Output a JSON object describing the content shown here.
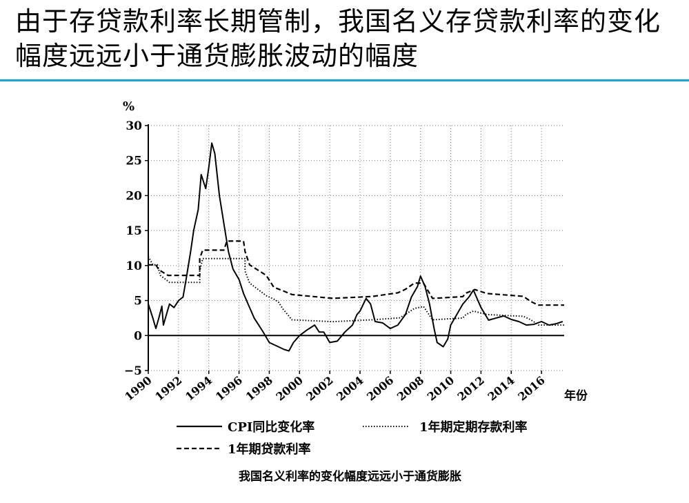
{
  "slide": {
    "title": "由于存贷款利率长期管制，我国名义存贷款利率的变化幅度远远小于通货膨胀波动的幅度",
    "caption": "我国名义利率的变化幅度远远小于通货膨胀",
    "accent_color": "#1aa6cf"
  },
  "chart_data": {
    "type": "line",
    "title": "",
    "xlabel": "年份",
    "ylabel": "%",
    "xlim": [
      1990,
      2017.5
    ],
    "ylim": [
      -5,
      30
    ],
    "yticks": [
      -5,
      0,
      5,
      10,
      15,
      20,
      25,
      30
    ],
    "xticks": [
      "1990",
      "1992",
      "1994",
      "1996",
      "1998",
      "2000",
      "2002",
      "2004",
      "2006",
      "2008",
      "2010",
      "2012",
      "2014",
      "2016"
    ],
    "grid": true,
    "legend_position": "bottom",
    "series": [
      {
        "name": "CPI同比变化率",
        "style": "solid",
        "points": [
          [
            1990,
            4.5
          ],
          [
            1990.3,
            2.5
          ],
          [
            1990.5,
            1.0
          ],
          [
            1990.7,
            2.5
          ],
          [
            1990.9,
            4.2
          ],
          [
            1991.0,
            1.5
          ],
          [
            1991.2,
            3.0
          ],
          [
            1991.4,
            4.5
          ],
          [
            1991.7,
            4.0
          ],
          [
            1992.0,
            5.0
          ],
          [
            1992.3,
            5.5
          ],
          [
            1992.5,
            8.0
          ],
          [
            1992.8,
            12.0
          ],
          [
            1993.0,
            15.0
          ],
          [
            1993.3,
            18.0
          ],
          [
            1993.5,
            23.0
          ],
          [
            1993.8,
            21.0
          ],
          [
            1994.0,
            24.0
          ],
          [
            1994.2,
            27.5
          ],
          [
            1994.4,
            26.0
          ],
          [
            1994.7,
            20.0
          ],
          [
            1995.0,
            16.0
          ],
          [
            1995.3,
            12.0
          ],
          [
            1995.6,
            9.5
          ],
          [
            1996.0,
            8.0
          ],
          [
            1996.3,
            6.0
          ],
          [
            1996.6,
            4.5
          ],
          [
            1997.0,
            2.5
          ],
          [
            1997.3,
            1.5
          ],
          [
            1997.6,
            0.5
          ],
          [
            1998.0,
            -1.0
          ],
          [
            1998.5,
            -1.5
          ],
          [
            1999.0,
            -2.0
          ],
          [
            1999.3,
            -2.2
          ],
          [
            1999.6,
            -1.0
          ],
          [
            2000.0,
            0.0
          ],
          [
            2000.5,
            0.8
          ],
          [
            2001.0,
            1.5
          ],
          [
            2001.3,
            0.5
          ],
          [
            2001.6,
            0.5
          ],
          [
            2002.0,
            -1.0
          ],
          [
            2002.5,
            -0.8
          ],
          [
            2003.0,
            0.5
          ],
          [
            2003.5,
            1.5
          ],
          [
            2003.8,
            3.0
          ],
          [
            2004.0,
            3.5
          ],
          [
            2004.4,
            5.3
          ],
          [
            2004.7,
            4.5
          ],
          [
            2005.0,
            2.0
          ],
          [
            2005.5,
            1.8
          ],
          [
            2006.0,
            1.0
          ],
          [
            2006.5,
            1.5
          ],
          [
            2007.0,
            3.0
          ],
          [
            2007.4,
            5.5
          ],
          [
            2007.8,
            7.0
          ],
          [
            2008.0,
            8.5
          ],
          [
            2008.3,
            7.0
          ],
          [
            2008.6,
            4.5
          ],
          [
            2008.9,
            1.0
          ],
          [
            2009.1,
            -1.0
          ],
          [
            2009.5,
            -1.6
          ],
          [
            2009.8,
            -0.5
          ],
          [
            2010.0,
            1.5
          ],
          [
            2010.4,
            3.0
          ],
          [
            2010.8,
            4.5
          ],
          [
            2011.2,
            5.5
          ],
          [
            2011.5,
            6.5
          ],
          [
            2011.8,
            5.0
          ],
          [
            2012.0,
            4.0
          ],
          [
            2012.5,
            2.2
          ],
          [
            2013.0,
            2.5
          ],
          [
            2013.5,
            2.8
          ],
          [
            2014.0,
            2.3
          ],
          [
            2014.5,
            2.0
          ],
          [
            2015.0,
            1.5
          ],
          [
            2015.5,
            1.6
          ],
          [
            2016.0,
            2.0
          ],
          [
            2016.5,
            1.5
          ],
          [
            2017.0,
            1.7
          ],
          [
            2017.4,
            2.0
          ]
        ]
      },
      {
        "name": "1年期定期存款利率",
        "style": "dotted",
        "points": [
          [
            1990,
            11.3
          ],
          [
            1990.3,
            10.1
          ],
          [
            1990.6,
            10.1
          ],
          [
            1990.8,
            8.6
          ],
          [
            1991.4,
            7.6
          ],
          [
            1993.4,
            7.6
          ],
          [
            1993.4,
            9.2
          ],
          [
            1993.6,
            11.0
          ],
          [
            1996.4,
            11.0
          ],
          [
            1996.4,
            9.2
          ],
          [
            1996.7,
            7.5
          ],
          [
            1997.8,
            5.7
          ],
          [
            1998.3,
            5.2
          ],
          [
            1998.6,
            4.8
          ],
          [
            1998.9,
            3.8
          ],
          [
            1999.5,
            2.25
          ],
          [
            2002.2,
            1.98
          ],
          [
            2004.8,
            2.25
          ],
          [
            2006.6,
            2.52
          ],
          [
            2007.0,
            3.0
          ],
          [
            2007.6,
            3.87
          ],
          [
            2008.2,
            4.14
          ],
          [
            2008.8,
            2.25
          ],
          [
            2010.8,
            2.5
          ],
          [
            2011.0,
            3.0
          ],
          [
            2011.5,
            3.5
          ],
          [
            2012.4,
            3.0
          ],
          [
            2014.8,
            2.75
          ],
          [
            2015.3,
            2.25
          ],
          [
            2015.8,
            1.5
          ],
          [
            2017.5,
            1.5
          ]
        ]
      },
      {
        "name": "1年期贷款利率",
        "style": "dashed",
        "points": [
          [
            1990,
            10.1
          ],
          [
            1990.5,
            10.1
          ],
          [
            1990.7,
            9.4
          ],
          [
            1991.3,
            8.6
          ],
          [
            1993.4,
            8.6
          ],
          [
            1993.4,
            11.0
          ],
          [
            1993.6,
            12.2
          ],
          [
            1995.0,
            12.2
          ],
          [
            1995.2,
            13.5
          ],
          [
            1996.3,
            13.5
          ],
          [
            1996.4,
            12.0
          ],
          [
            1996.7,
            10.1
          ],
          [
            1997.8,
            8.6
          ],
          [
            1998.3,
            6.9
          ],
          [
            1998.9,
            6.4
          ],
          [
            1999.5,
            5.85
          ],
          [
            2002.2,
            5.31
          ],
          [
            2004.8,
            5.58
          ],
          [
            2006.5,
            6.1
          ],
          [
            2007.0,
            6.6
          ],
          [
            2007.6,
            7.5
          ],
          [
            2008.2,
            7.47
          ],
          [
            2008.8,
            5.3
          ],
          [
            2010.8,
            5.56
          ],
          [
            2011.0,
            6.06
          ],
          [
            2011.6,
            6.56
          ],
          [
            2012.4,
            6.0
          ],
          [
            2014.8,
            5.6
          ],
          [
            2015.3,
            4.85
          ],
          [
            2015.8,
            4.35
          ],
          [
            2017.5,
            4.35
          ]
        ]
      }
    ]
  }
}
